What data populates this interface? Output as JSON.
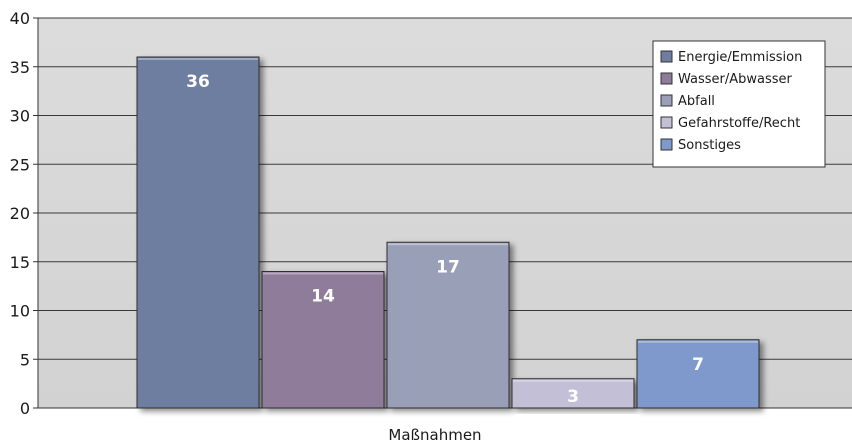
{
  "chart_data": {
    "type": "bar",
    "categories": [
      "Energie/Emmission",
      "Wasser/Abwasser",
      "Abfall",
      "Gefahrstoffe/Recht",
      "Sonstiges"
    ],
    "values": [
      36,
      14,
      17,
      3,
      7
    ],
    "data_labels": [
      "36",
      "14",
      "17",
      "3",
      "7"
    ],
    "colors": [
      "#6e7ea0",
      "#8e7b9a",
      "#9a9fb8",
      "#c3bfd6",
      "#7f99cc"
    ],
    "xlabel": "Maßnahmen",
    "ylabel": "",
    "title": "",
    "ylim": [
      0,
      40
    ],
    "yticks": [
      0,
      5,
      10,
      15,
      20,
      25,
      30,
      35,
      40
    ],
    "ytick_labels": [
      "0",
      "5",
      "10",
      "15",
      "20",
      "25",
      "30",
      "35",
      "40"
    ],
    "grid": true,
    "plot_background": "#d8d8d8",
    "legend": {
      "placement": "top-right",
      "entries": [
        "Energie/Emmission",
        "Wasser/Abwasser",
        "Abfall",
        "Gefahrstoffe/Recht",
        "Sonstiges"
      ]
    }
  }
}
